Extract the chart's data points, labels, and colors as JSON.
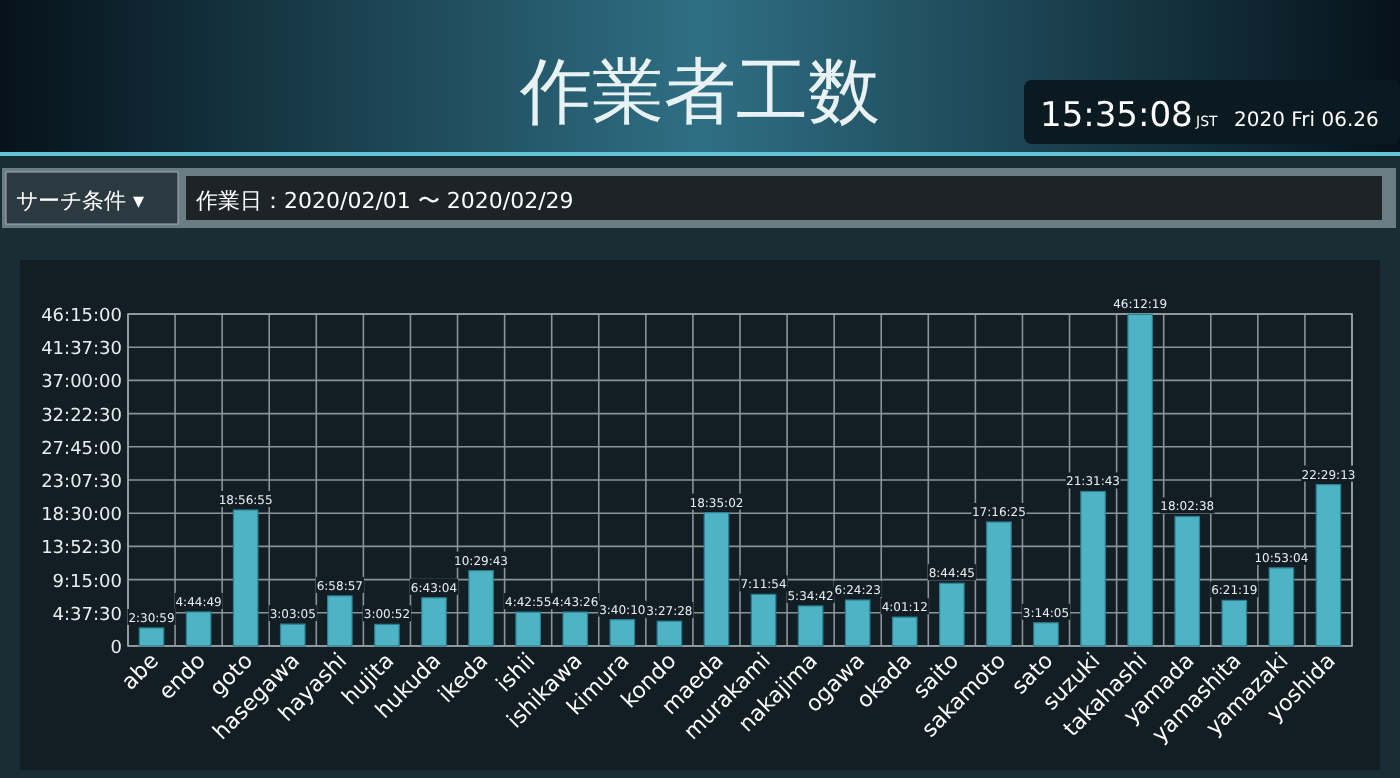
{
  "chart_data": {
    "type": "bar",
    "title": "作業者工数",
    "annotations": [
      "15:35:08",
      "JST",
      "2020 Fri 06.26",
      "サーチ条件 ▾",
      "作業日：2020/02/01 〜 2020/02/29"
    ],
    "categories": [
      "abe",
      "endo",
      "goto",
      "hasegawa",
      "hayashi",
      "hujita",
      "hukuda",
      "ikeda",
      "ishii",
      "ishikawa",
      "kimura",
      "kondo",
      "maeda",
      "murakami",
      "nakajima",
      "ogawa",
      "okada",
      "saito",
      "sakamoto",
      "sato",
      "suzuki",
      "takahashi",
      "yamada",
      "yamashita",
      "yamazaki",
      "yoshida"
    ],
    "values": [
      2.5164,
      4.7469,
      18.9486,
      3.0514,
      6.9825,
      3.0144,
      6.7178,
      10.4953,
      4.7153,
      4.7239,
      3.6694,
      3.4578,
      18.5839,
      7.1983,
      5.5783,
      6.4064,
      4.02,
      8.7458,
      17.2736,
      3.2347,
      21.5286,
      46.2053,
      18.0439,
      6.3553,
      10.8844,
      22.4869
    ],
    "value_labels": [
      "2:30:59",
      "4:44:49",
      "18:56:55",
      "3:03:05",
      "6:58:57",
      "3:00:52",
      "6:43:04",
      "10:29:43",
      "4:42:55",
      "4:43:26",
      "3:40:10",
      "3:27:28",
      "18:35:02",
      "7:11:54",
      "5:34:42",
      "6:24:23",
      "4:01:12",
      "8:44:45",
      "17:16:25",
      "3:14:05",
      "21:31:43",
      "46:12:19",
      "18:02:38",
      "6:21:19",
      "10:53:04",
      "22:29:13"
    ],
    "color": "#4fb3c6",
    "ylim": [
      0,
      46.25
    ],
    "yticks": [
      0,
      {
        "value": 4.625,
        "label": "4:37:30"
      },
      {
        "value": 9.25,
        "label": "9:15:00"
      },
      {
        "value": 13.875,
        "label": "13:52:30"
      },
      {
        "value": 18.5,
        "label": "18:30:00"
      },
      {
        "value": 23.125,
        "label": "23:07:30"
      },
      {
        "value": 27.75,
        "label": "27:45:00"
      },
      {
        "value": 32.375,
        "label": "32:22:30"
      },
      {
        "value": 37,
        "label": "37:00:00"
      },
      {
        "value": 41.625,
        "label": "41:37:30"
      },
      {
        "value": 46.25,
        "label": "46:15:00"
      }
    ],
    "grid": true
  }
}
